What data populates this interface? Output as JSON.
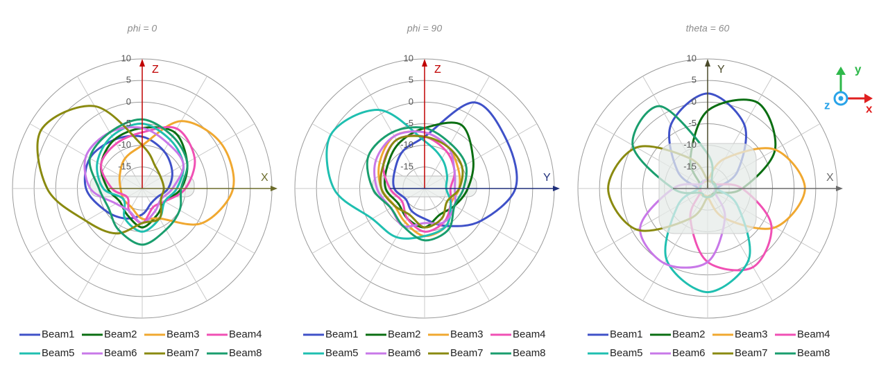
{
  "chart_data": [
    {
      "type": "polar",
      "title": "phi = 0",
      "vertical_axis_label": "Z",
      "horizontal_axis_label": "X",
      "vertical_axis_color": "#c00000",
      "horizontal_axis_color": "#6b6b2a",
      "theta": [
        0,
        30,
        60,
        90,
        120,
        150,
        180,
        210,
        240,
        270,
        300,
        330
      ],
      "rlim": [
        -20,
        10
      ],
      "rticks": [
        10,
        5,
        0,
        -5,
        -10,
        -15
      ],
      "grid": true,
      "series": [
        {
          "name": "Beam1",
          "color": "#3f51c8",
          "values": [
            -8,
            -10,
            -12,
            -14,
            -16,
            -16,
            -14,
            -12,
            -10,
            -7,
            -6,
            -7
          ]
        },
        {
          "name": "Beam2",
          "color": "#0a6e12",
          "values": [
            -6,
            -5,
            -8,
            -11,
            -14,
            -13,
            -11,
            -13,
            -14,
            -12,
            -9,
            -7
          ]
        },
        {
          "name": "Beam3",
          "color": "#f0a830",
          "values": [
            -10,
            -2,
            1,
            1,
            -4,
            -12,
            -13,
            -15,
            -15,
            -15,
            -14,
            -12
          ]
        },
        {
          "name": "Beam4",
          "color": "#f050b4",
          "values": [
            -7,
            -4,
            -6,
            -10,
            -14,
            -15,
            -12,
            -14,
            -16,
            -13,
            -9,
            -8
          ]
        },
        {
          "name": "Beam5",
          "color": "#1fbfb0",
          "values": [
            -5,
            -7,
            -9,
            -12,
            -14,
            -12,
            -10,
            -12,
            -15,
            -11,
            -8,
            -6
          ]
        },
        {
          "name": "Beam6",
          "color": "#c878e8",
          "values": [
            -6,
            -8,
            -9,
            -13,
            -15,
            -14,
            -12,
            -14,
            -13,
            -8,
            -5,
            -5
          ]
        },
        {
          "name": "Beam7",
          "color": "#8a8a10",
          "values": [
            -10,
            -14,
            -15,
            -15,
            -15,
            -12,
            -12,
            -8,
            -5,
            2,
            7,
            2
          ]
        },
        {
          "name": "Beam8",
          "color": "#1a9e6e",
          "values": [
            -4,
            -6,
            -8,
            -11,
            -10,
            -9,
            -7,
            -9,
            -11,
            -10,
            -6,
            -5
          ]
        }
      ]
    },
    {
      "type": "polar",
      "title": "phi = 90",
      "vertical_axis_label": "Z",
      "horizontal_axis_label": "Y",
      "vertical_axis_color": "#c00000",
      "horizontal_axis_color": "#1f2f7a",
      "theta": [
        0,
        30,
        60,
        90,
        120,
        150,
        180,
        210,
        240,
        270,
        300,
        330
      ],
      "rlim": [
        -20,
        10
      ],
      "rticks": [
        10,
        5,
        0,
        -5,
        -10,
        -15
      ],
      "grid": true,
      "series": [
        {
          "name": "Beam1",
          "color": "#3f51c8",
          "values": [
            -8,
            3,
            2,
            1,
            -5,
            -10,
            -13,
            -14,
            -15,
            -13,
            -12,
            -10
          ]
        },
        {
          "name": "Beam2",
          "color": "#0a6e12",
          "values": [
            -6,
            -3,
            -7,
            -10,
            -12,
            -13,
            -11,
            -12,
            -13,
            -11,
            -10,
            -8
          ]
        },
        {
          "name": "Beam3",
          "color": "#f0a830",
          "values": [
            -7,
            -9,
            -11,
            -12,
            -13,
            -10,
            -9,
            -11,
            -12,
            -10,
            -8,
            -6
          ]
        },
        {
          "name": "Beam4",
          "color": "#f050b4",
          "values": [
            -8,
            -10,
            -12,
            -14,
            -13,
            -11,
            -10,
            -12,
            -14,
            -12,
            -9,
            -7
          ]
        },
        {
          "name": "Beam5",
          "color": "#1fbfb0",
          "values": [
            -9,
            -12,
            -14,
            -15,
            -13,
            -10,
            -9,
            -7,
            -6,
            1,
            5,
            1
          ]
        },
        {
          "name": "Beam6",
          "color": "#c878e8",
          "values": [
            -7,
            -9,
            -12,
            -13,
            -12,
            -11,
            -12,
            -10,
            -11,
            -9,
            -7,
            -6
          ]
        },
        {
          "name": "Beam7",
          "color": "#8a8a10",
          "values": [
            -8,
            -9,
            -10,
            -12,
            -14,
            -12,
            -11,
            -13,
            -12,
            -10,
            -9,
            -7
          ]
        },
        {
          "name": "Beam8",
          "color": "#1a9e6e",
          "values": [
            -6,
            -8,
            -9,
            -11,
            -12,
            -9,
            -8,
            -10,
            -11,
            -8,
            -5,
            -5
          ]
        }
      ]
    },
    {
      "type": "polar",
      "title": "theta = 60",
      "vertical_axis_label": "Y",
      "horizontal_axis_label": "X",
      "vertical_axis_color": "#4a4a2a",
      "horizontal_axis_color": "#6b6b6b",
      "theta": [
        0,
        30,
        60,
        90,
        120,
        150,
        180,
        210,
        240,
        270,
        300,
        330
      ],
      "rlim": [
        -20,
        10
      ],
      "rticks": [
        10,
        5,
        0,
        -5,
        -10,
        -15
      ],
      "grid": true,
      "series": [
        {
          "name": "Beam1",
          "color": "#3f51c8",
          "values": [
            2,
            -3,
            -12,
            -18,
            -18,
            -18,
            -18,
            -18,
            -18,
            -18,
            -12,
            -3
          ]
        },
        {
          "name": "Beam2",
          "color": "#0a6e12",
          "values": [
            -2,
            3,
            -2,
            -12,
            -18,
            -18,
            -18,
            -18,
            -18,
            -18,
            -18,
            -12
          ]
        },
        {
          "name": "Beam3",
          "color": "#f0a830",
          "values": [
            -18,
            -12,
            -2,
            2.5,
            -2,
            -12,
            -18,
            -18,
            -18,
            -18,
            -18,
            -18
          ]
        },
        {
          "name": "Beam4",
          "color": "#f050b4",
          "values": [
            -18,
            -18,
            -18,
            -12,
            -3,
            1,
            -3,
            -12,
            -18,
            -18,
            -18,
            -18
          ]
        },
        {
          "name": "Beam5",
          "color": "#1fbfb0",
          "values": [
            -18,
            -18,
            -18,
            -18,
            -12,
            -1,
            4,
            -1,
            -12,
            -18,
            -18,
            -18
          ]
        },
        {
          "name": "Beam6",
          "color": "#c878e8",
          "values": [
            -18,
            -18,
            -18,
            -18,
            -18,
            -12,
            -3,
            0,
            -2,
            -12,
            -18,
            -18
          ]
        },
        {
          "name": "Beam7",
          "color": "#8a8a10",
          "values": [
            -18,
            -18,
            -18,
            -18,
            -18,
            -18,
            -18,
            -12,
            -1,
            3,
            -1,
            -12
          ]
        },
        {
          "name": "Beam8",
          "color": "#1a9e6e",
          "values": [
            -12,
            -18,
            -18,
            -18,
            -18,
            -18,
            -18,
            -18,
            -18,
            -12,
            0,
            2
          ]
        }
      ]
    }
  ],
  "axes_icon": {
    "x": "x",
    "y": "y",
    "z": "z"
  }
}
